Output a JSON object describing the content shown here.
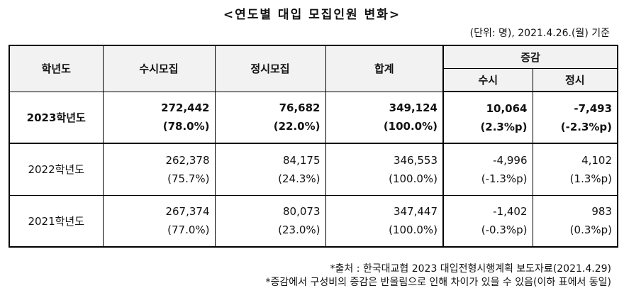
{
  "title": "<연도별 대입 모집인원 변화>",
  "unit_note": "(단위: 명), 2021.4.26.(월) 기준",
  "table": {
    "headers": {
      "year": "학년도",
      "susi": "수시모집",
      "jeongsi": "정시모집",
      "total": "합계",
      "change": "증감",
      "change_susi": "수시",
      "change_jeongsi": "정시"
    },
    "rows": [
      {
        "year": "2023학년도",
        "susi": "272,442",
        "susi_pct": "(78.0%)",
        "jeongsi": "76,682",
        "jeongsi_pct": "(22.0%)",
        "total": "349,124",
        "total_pct": "(100.0%)",
        "change_susi": "10,064",
        "change_susi_pct": "(2.3%p)",
        "change_jeongsi": "-7,493",
        "change_jeongsi_pct": "(-2.3%p)"
      },
      {
        "year": "2022학년도",
        "susi": "262,378",
        "susi_pct": "(75.7%)",
        "jeongsi": "84,175",
        "jeongsi_pct": "(24.3%)",
        "total": "346,553",
        "total_pct": "(100.0%)",
        "change_susi": "-4,996",
        "change_susi_pct": "(-1.3%p)",
        "change_jeongsi": "4,102",
        "change_jeongsi_pct": "(1.3%p)"
      },
      {
        "year": "2021학년도",
        "susi": "267,374",
        "susi_pct": "(77.0%)",
        "jeongsi": "80,073",
        "jeongsi_pct": "(23.0%)",
        "total": "347,447",
        "total_pct": "(100.0%)",
        "change_susi": "-1,402",
        "change_susi_pct": "(-0.3%p)",
        "change_jeongsi": "983",
        "change_jeongsi_pct": "(0.3%p)"
      }
    ]
  },
  "notes": [
    "*출처 : 한국대교협 2023 대입전형시행계획 보도자료(2021.4.29)",
    "*증감에서 구성비의 증감은 반올림으로 인해 차이가 있을 수 있음(이하 표에서 동일)"
  ]
}
